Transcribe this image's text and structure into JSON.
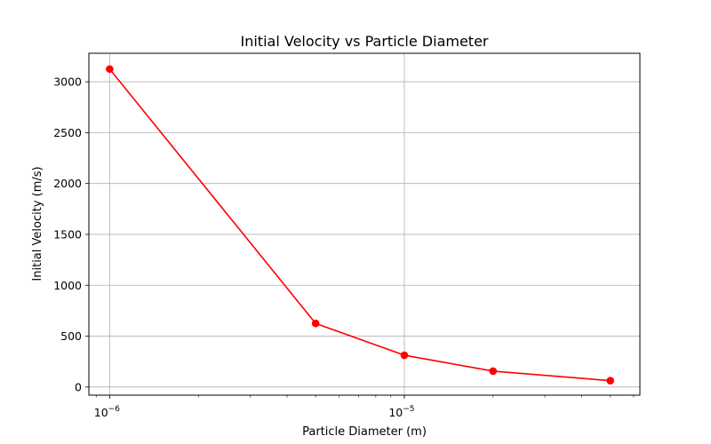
{
  "chart_data": {
    "type": "line",
    "title": "Initial Velocity vs Particle Diameter",
    "xlabel": "Particle Diameter (m)",
    "ylabel": "Initial Velocity (m/s)",
    "x_scale": "log",
    "xlim": [
      8.5e-07,
      6.3e-05
    ],
    "ylim": [
      -80,
      3280
    ],
    "grid": true,
    "x_major_ticks": [
      {
        "value": 1e-06,
        "base": "10",
        "exp": "−6"
      },
      {
        "value": 1e-05,
        "base": "10",
        "exp": "−5"
      }
    ],
    "y_ticks": [
      0,
      500,
      1000,
      1500,
      2000,
      2500,
      3000
    ],
    "series": [
      {
        "color": "#ff0000",
        "marker": "circle",
        "x": [
          1e-06,
          5e-06,
          1e-05,
          2e-05,
          5e-05
        ],
        "y": [
          3125,
          625,
          312.5,
          156.25,
          62.5
        ]
      }
    ]
  }
}
